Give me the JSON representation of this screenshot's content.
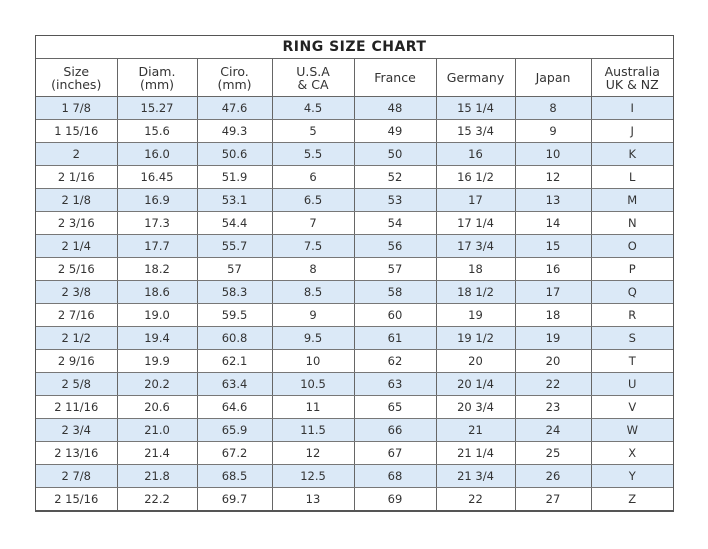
{
  "title": "RING SIZE CHART",
  "colors": {
    "alt_row": "#dbe9f7",
    "border": "#666666"
  },
  "headers": [
    [
      "Size",
      "(inches)"
    ],
    [
      "Diam.",
      "(mm)"
    ],
    [
      "Ciro.",
      "(mm)"
    ],
    [
      "U.S.A",
      "& CA"
    ],
    [
      "France",
      ""
    ],
    [
      "Germany",
      ""
    ],
    [
      "Japan",
      ""
    ],
    [
      "Australia",
      "UK & NZ"
    ]
  ],
  "rows": [
    [
      "1 7/8",
      "15.27",
      "47.6",
      "4.5",
      "48",
      "15 1/4",
      "8",
      "I"
    ],
    [
      "1 15/16",
      "15.6",
      "49.3",
      "5",
      "49",
      "15 3/4",
      "9",
      "J"
    ],
    [
      "2",
      "16.0",
      "50.6",
      "5.5",
      "50",
      "16",
      "10",
      "K"
    ],
    [
      "2 1/16",
      "16.45",
      "51.9",
      "6",
      "52",
      "16 1/2",
      "12",
      "L"
    ],
    [
      "2 1/8",
      "16.9",
      "53.1",
      "6.5",
      "53",
      "17",
      "13",
      "M"
    ],
    [
      "2 3/16",
      "17.3",
      "54.4",
      "7",
      "54",
      "17 1/4",
      "14",
      "N"
    ],
    [
      "2 1/4",
      "17.7",
      "55.7",
      "7.5",
      "56",
      "17 3/4",
      "15",
      "O"
    ],
    [
      "2 5/16",
      "18.2",
      "57",
      "8",
      "57",
      "18",
      "16",
      "P"
    ],
    [
      "2 3/8",
      "18.6",
      "58.3",
      "8.5",
      "58",
      "18 1/2",
      "17",
      "Q"
    ],
    [
      "2 7/16",
      "19.0",
      "59.5",
      "9",
      "60",
      "19",
      "18",
      "R"
    ],
    [
      "2 1/2",
      "19.4",
      "60.8",
      "9.5",
      "61",
      "19 1/2",
      "19",
      "S"
    ],
    [
      "2 9/16",
      "19.9",
      "62.1",
      "10",
      "62",
      "20",
      "20",
      "T"
    ],
    [
      "2 5/8",
      "20.2",
      "63.4",
      "10.5",
      "63",
      "20 1/4",
      "22",
      "U"
    ],
    [
      "2 11/16",
      "20.6",
      "64.6",
      "11",
      "65",
      "20 3/4",
      "23",
      "V"
    ],
    [
      "2 3/4",
      "21.0",
      "65.9",
      "11.5",
      "66",
      "21",
      "24",
      "W"
    ],
    [
      "2 13/16",
      "21.4",
      "67.2",
      "12",
      "67",
      "21 1/4",
      "25",
      "X"
    ],
    [
      "2 7/8",
      "21.8",
      "68.5",
      "12.5",
      "68",
      "21 3/4",
      "26",
      "Y"
    ],
    [
      "2 15/16",
      "22.2",
      "69.7",
      "13",
      "69",
      "22",
      "27",
      "Z"
    ]
  ]
}
